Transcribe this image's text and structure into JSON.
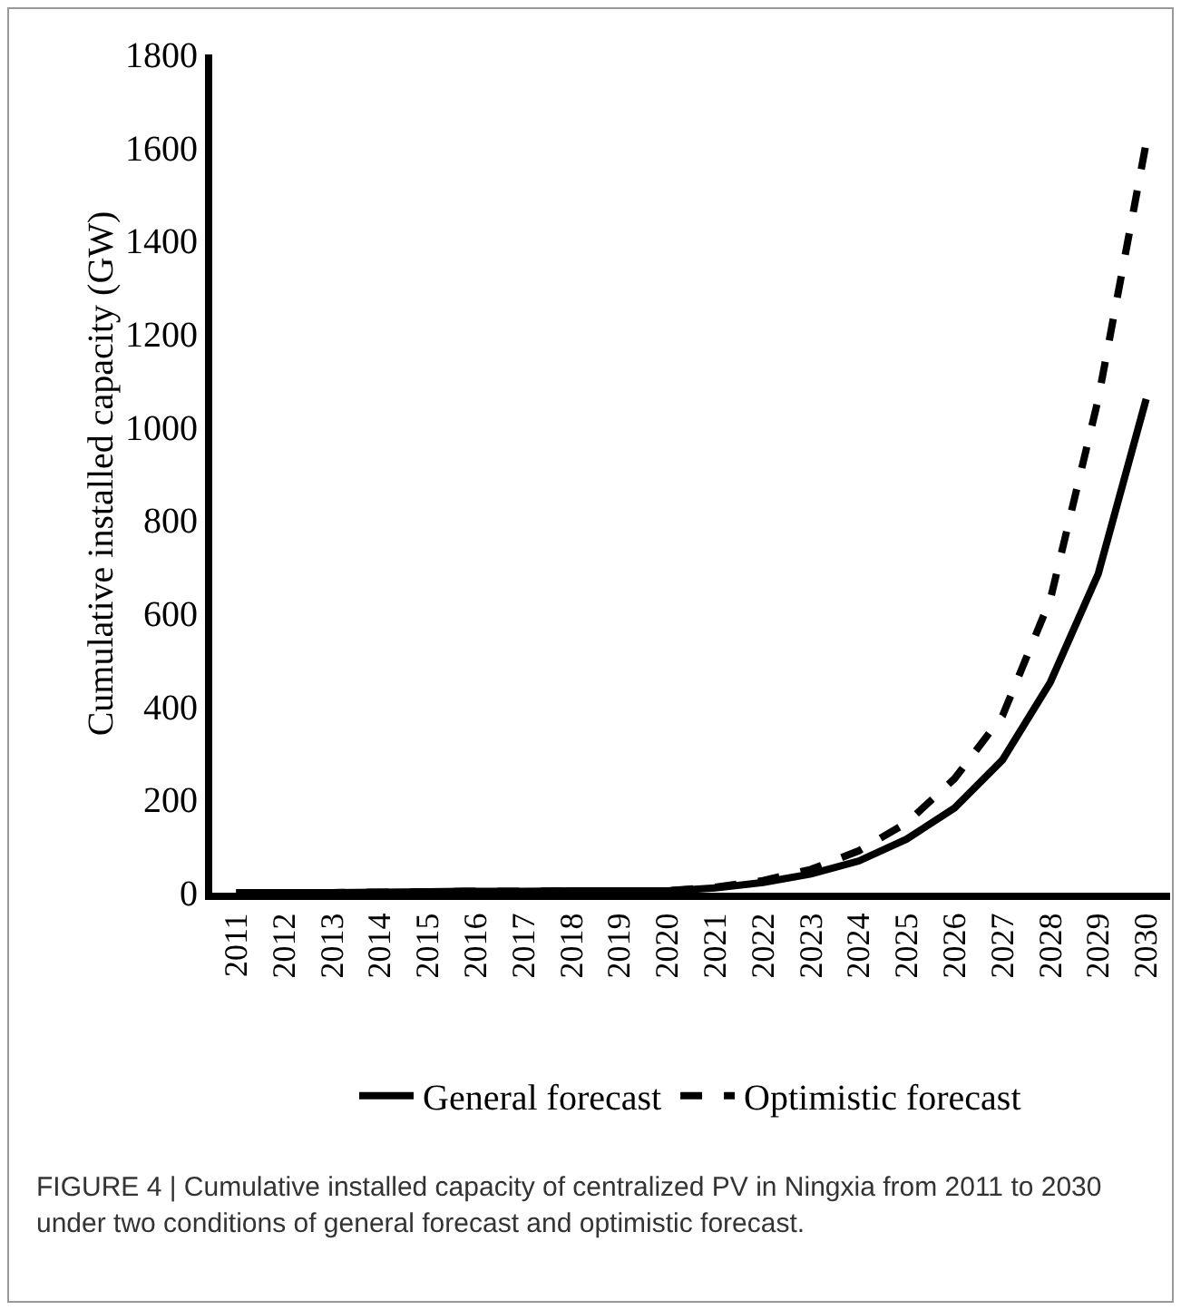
{
  "chart_data": {
    "type": "line",
    "categories": [
      "2011",
      "2012",
      "2013",
      "2014",
      "2015",
      "2016",
      "2017",
      "2018",
      "2019",
      "2020",
      "2021",
      "2022",
      "2023",
      "2024",
      "2025",
      "2026",
      "2027",
      "2028",
      "2029",
      "2030"
    ],
    "ylabel": "Cumulative installed capacity (GW)",
    "ylim": [
      0,
      1800
    ],
    "yticks": [
      0,
      200,
      400,
      600,
      800,
      1000,
      1200,
      1400,
      1600,
      1800
    ],
    "series": [
      {
        "name": "General forecast",
        "color": "#000000",
        "line_style": "solid",
        "values": [
          0,
          0,
          0,
          1,
          2,
          3,
          3,
          4,
          4,
          4,
          10,
          22,
          40,
          68,
          115,
          182,
          285,
          452,
          685,
          1060
        ]
      },
      {
        "name": "Optimistic forecast",
        "color": "#000000",
        "line_style": "dashed",
        "values": [
          0,
          0,
          0,
          1,
          2,
          3,
          3,
          4,
          4,
          4,
          12,
          26,
          50,
          90,
          150,
          245,
          380,
          630,
          1060,
          1610
        ]
      }
    ],
    "legend": "bottom",
    "grid": false,
    "marker": "none",
    "annotations": [
      "FIGURE 4 | Cumulative installed capacity of centralized PV in Ningxia from 2011 to 2030 under two conditions of general forecast and optimistic forecast."
    ]
  }
}
